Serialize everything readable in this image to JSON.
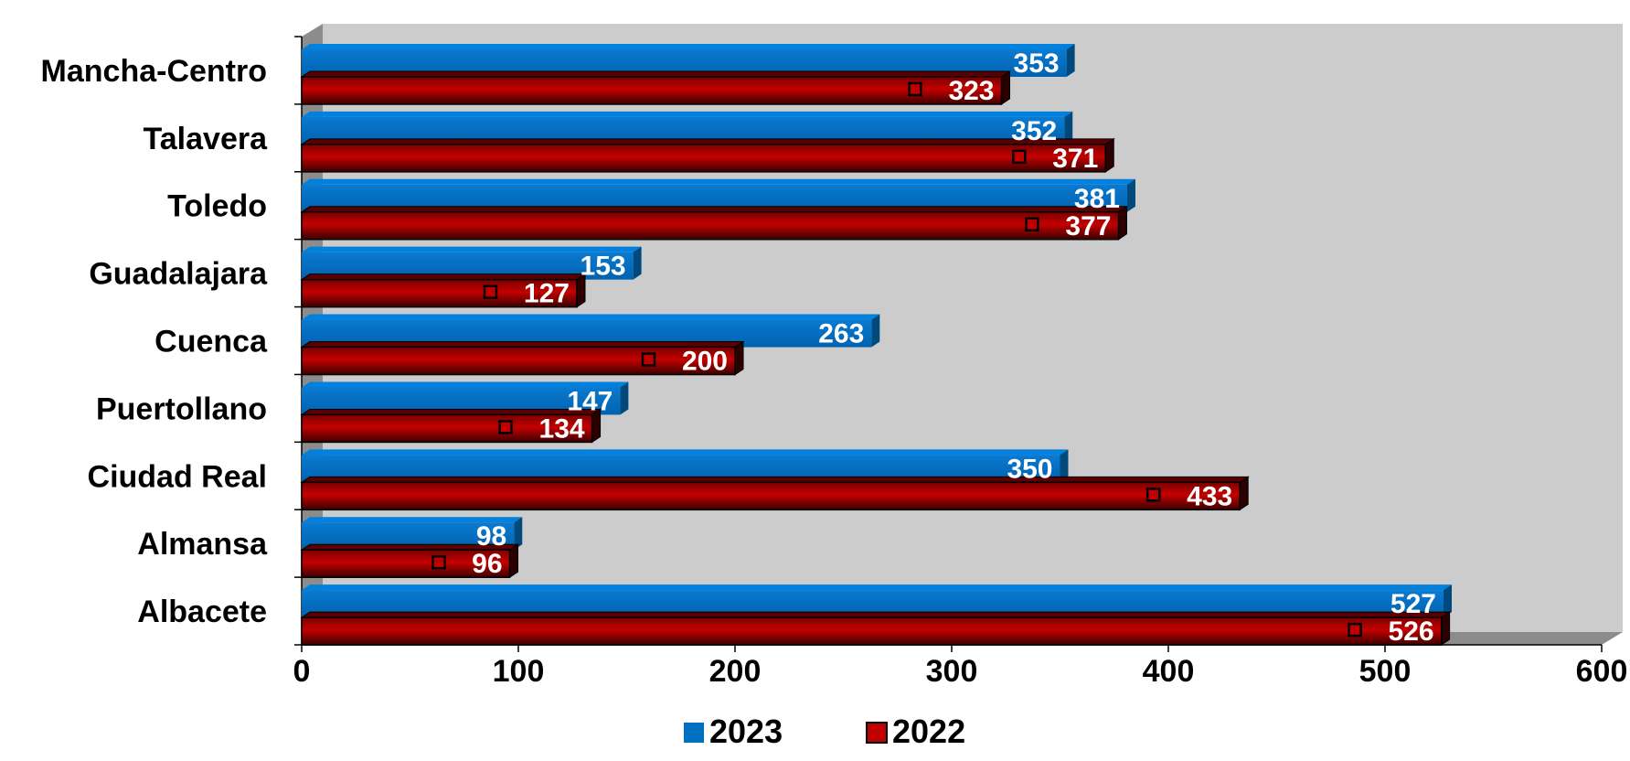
{
  "chart_data": {
    "type": "bar",
    "orientation": "horizontal",
    "three_d": true,
    "categories": [
      "Albacete",
      "Almansa",
      "Ciudad Real",
      "Puertollano",
      "Cuenca",
      "Guadalajara",
      "Toledo",
      "Talavera",
      "Mancha-Centro"
    ],
    "series": [
      {
        "name": "2023",
        "color": "#0070c0",
        "values": [
          527,
          98,
          350,
          147,
          263,
          153,
          381,
          352,
          353
        ]
      },
      {
        "name": "2022",
        "color": "#c00000",
        "values": [
          526,
          96,
          433,
          134,
          200,
          127,
          377,
          371,
          323
        ]
      }
    ],
    "xlim": [
      0,
      600
    ],
    "xticks": [
      "0",
      "100",
      "200",
      "300",
      "400",
      "500",
      "600"
    ],
    "title": "",
    "xlabel": "",
    "ylabel": "",
    "grid": false,
    "legend_position": "bottom",
    "data_labels": true,
    "plot_background": "#cccccc"
  }
}
